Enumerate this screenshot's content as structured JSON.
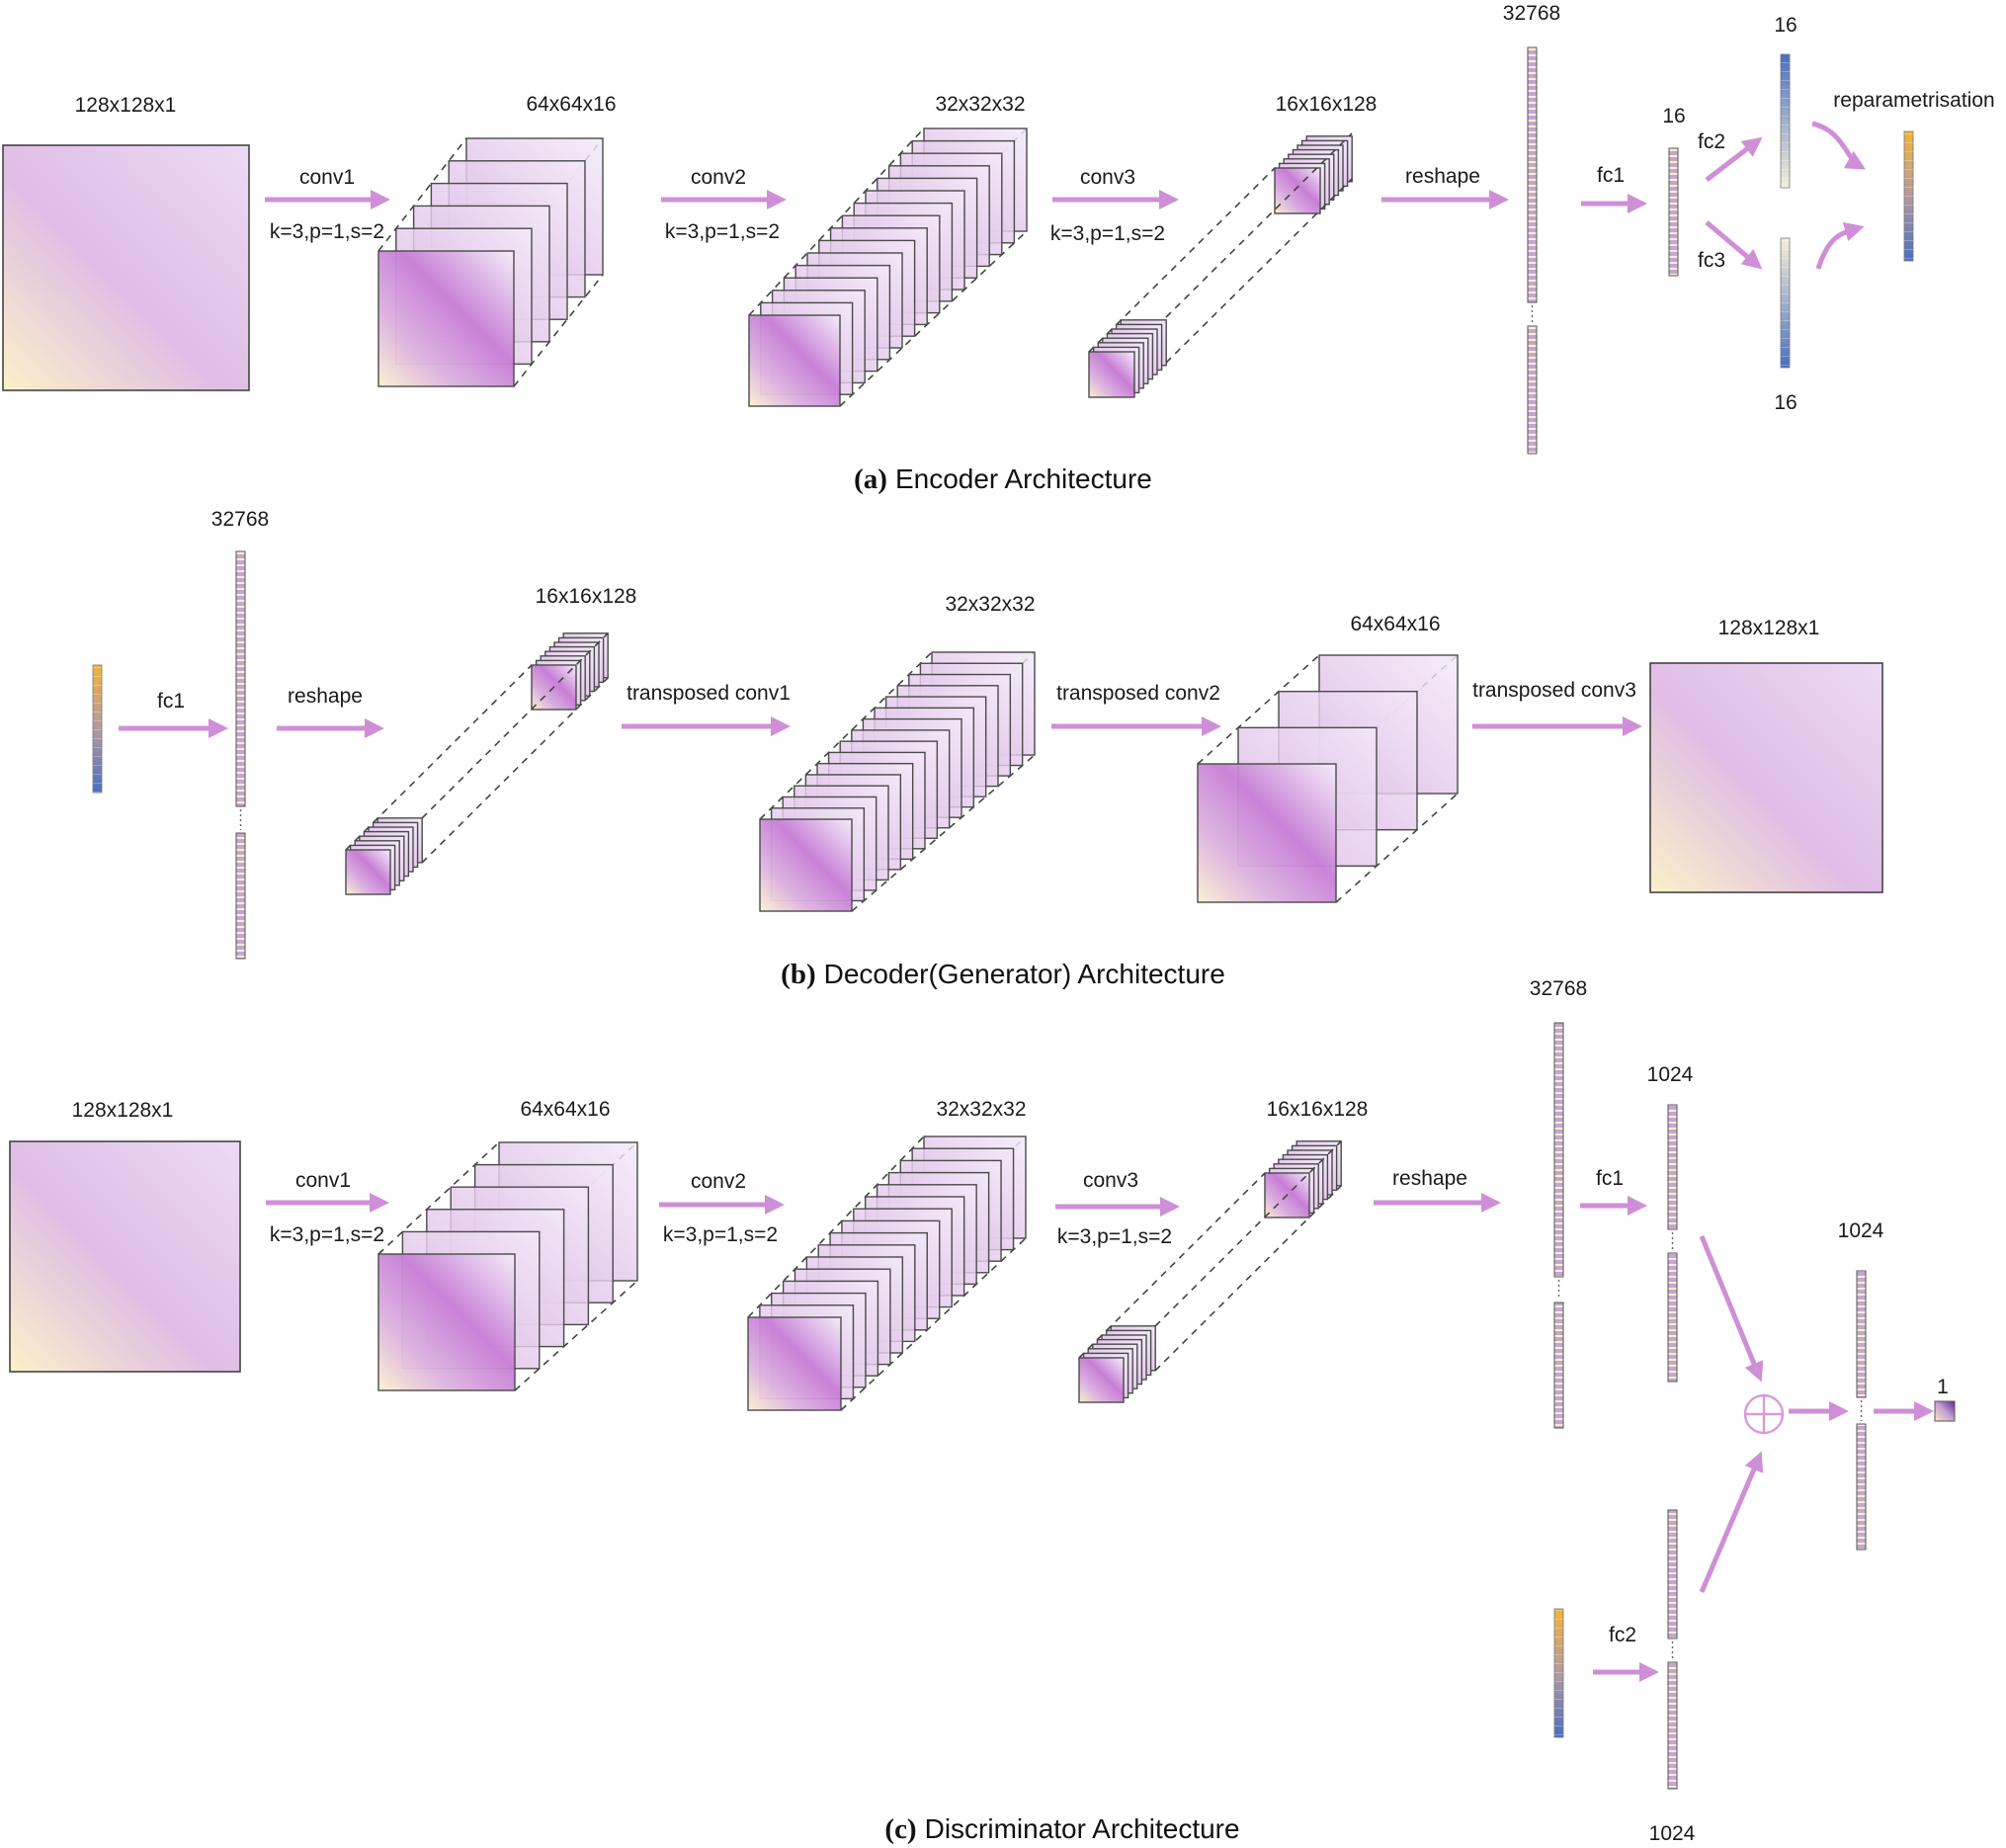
{
  "encoder": {
    "input_dim": "128x128x1",
    "conv1": "conv1",
    "conv1_params": "k=3,p=1,s=2",
    "conv1_dim": "64x64x16",
    "conv2": "conv2",
    "conv2_params": "k=3,p=1,s=2",
    "conv2_dim": "32x32x32",
    "conv3": "conv3",
    "conv3_params": "k=3,p=1,s=2",
    "conv3_dim": "16x16x128",
    "reshape": "reshape",
    "flat_dim": "32768",
    "fc1": "fc1",
    "fc1_dim": "16",
    "fc2": "fc2",
    "fc2_dim": "16",
    "fc3": "fc3",
    "fc3_dim": "16",
    "reparam": "reparametrisation",
    "caption_bold": "(a)",
    "caption_text": "Encoder Architecture"
  },
  "decoder": {
    "fc1": "fc1",
    "flat_dim": "32768",
    "reshape": "reshape",
    "reshape_dim": "16x16x128",
    "tconv1": "transposed  conv1",
    "tconv1_dim": "32x32x32",
    "tconv2": "transposed  conv2",
    "tconv2_dim": "64x64x16",
    "tconv3": "transposed  conv3",
    "output_dim": "128x128x1",
    "caption_bold": "(b)",
    "caption_text": "Decoder(Generator) Architecture"
  },
  "discriminator": {
    "input_dim": "128x128x1",
    "conv1": "conv1",
    "conv1_params": "k=3,p=1,s=2",
    "conv1_dim": "64x64x16",
    "conv2": "conv2",
    "conv2_params": "k=3,p=1,s=2",
    "conv2_dim": "32x32x32",
    "conv3": "conv3",
    "conv3_params": "k=3,p=1,s=2",
    "conv3_dim": "16x16x128",
    "reshape": "reshape",
    "flat_dim": "32768",
    "fc1": "fc1",
    "fc1_dim": "1024",
    "fc2": "fc2",
    "fc2_dim": "1024",
    "merge_dim": "1024",
    "output_dim": "1",
    "caption_bold": "(c)",
    "caption_text": "Discriminator Architecture"
  },
  "colors": {
    "arrow": "#cf8fd6",
    "feature": "#c785d6",
    "latent_top": "#f0b43c",
    "latent_bottom": "#4a6fbf"
  }
}
